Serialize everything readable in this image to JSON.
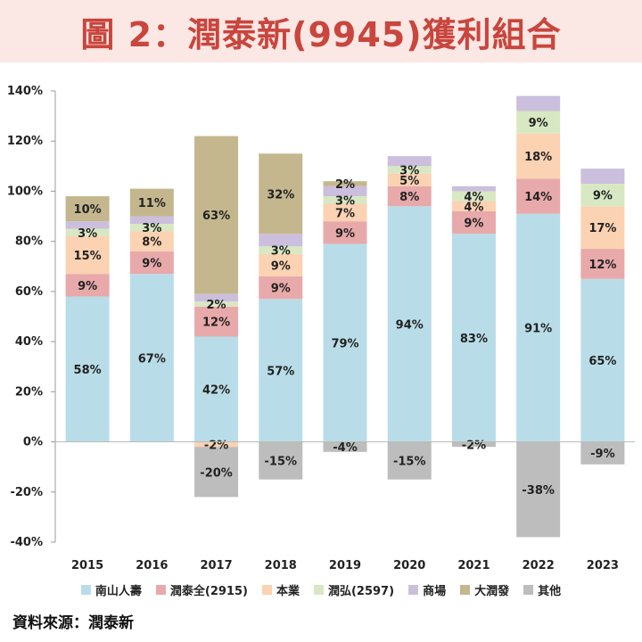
{
  "header": {
    "title": "圖 2：潤泰新(9945)獲利組合"
  },
  "source": {
    "text": "資料來源：潤泰新"
  },
  "chart_data": {
    "type": "bar",
    "stacked": true,
    "title": "圖 2：潤泰新(9945)獲利組合",
    "xlabel": "",
    "ylabel": "",
    "ylim": [
      -40,
      140
    ],
    "yticks": [
      -40,
      -20,
      0,
      20,
      40,
      60,
      80,
      100,
      120,
      140
    ],
    "ytick_labels": [
      "-40%",
      "-20%",
      "0%",
      "20%",
      "40%",
      "60%",
      "80%",
      "100%",
      "120%",
      "140%"
    ],
    "categories": [
      "2015",
      "2016",
      "2017",
      "2018",
      "2019",
      "2020",
      "2021",
      "2022",
      "2023"
    ],
    "legend_position": "bottom",
    "series": [
      {
        "name": "南山人壽",
        "color": "#b9dde8",
        "values": [
          58,
          67,
          42,
          57,
          79,
          94,
          83,
          91,
          65
        ],
        "labels": [
          "58%",
          "67%",
          "42%",
          "57%",
          "79%",
          "94%",
          "83%",
          "91%",
          "65%"
        ]
      },
      {
        "name": "潤泰全(2915)",
        "color": "#e8a9aa",
        "values": [
          9,
          9,
          12,
          9,
          9,
          8,
          9,
          14,
          12
        ],
        "labels": [
          "9%",
          "9%",
          "12%",
          "9%",
          "9%",
          "8%",
          "9%",
          "14%",
          "12%"
        ]
      },
      {
        "name": "本業",
        "color": "#fbd2b2",
        "values": [
          15,
          8,
          -2,
          9,
          7,
          5,
          4,
          18,
          17
        ],
        "labels": [
          "15%",
          "8%",
          "-2%",
          "9%",
          "7%",
          "5%",
          "4%",
          "18%",
          "17%"
        ]
      },
      {
        "name": "潤弘(2597)",
        "color": "#d8e8c2",
        "values": [
          3,
          3,
          2,
          3,
          3,
          3,
          4,
          9,
          9
        ],
        "labels": [
          "3%",
          "3%",
          "2%",
          "3%",
          "3%",
          "3%",
          "4%",
          "9%",
          "9%"
        ]
      },
      {
        "name": "商場",
        "color": "#cbbfdd",
        "values": [
          3,
          3,
          3,
          5,
          4,
          4,
          2,
          6,
          6
        ],
        "labels": [
          "",
          "",
          "",
          "",
          "",
          "",
          "",
          "",
          ""
        ]
      },
      {
        "name": "大潤發",
        "color": "#c4b78e",
        "values": [
          10,
          11,
          63,
          32,
          2,
          0,
          0,
          0,
          0
        ],
        "labels": [
          "10%",
          "11%",
          "63%",
          "32%",
          "2%",
          "",
          "",
          "",
          ""
        ]
      },
      {
        "name": "其他",
        "color": "#bdbdbd",
        "values": [
          0,
          0,
          -20,
          -15,
          -4,
          -15,
          -2,
          -38,
          -9
        ],
        "labels": [
          "",
          "",
          "-20%",
          "-15%",
          "-4%",
          "-15%",
          "-2%",
          "-38%",
          "-9%"
        ]
      }
    ]
  }
}
